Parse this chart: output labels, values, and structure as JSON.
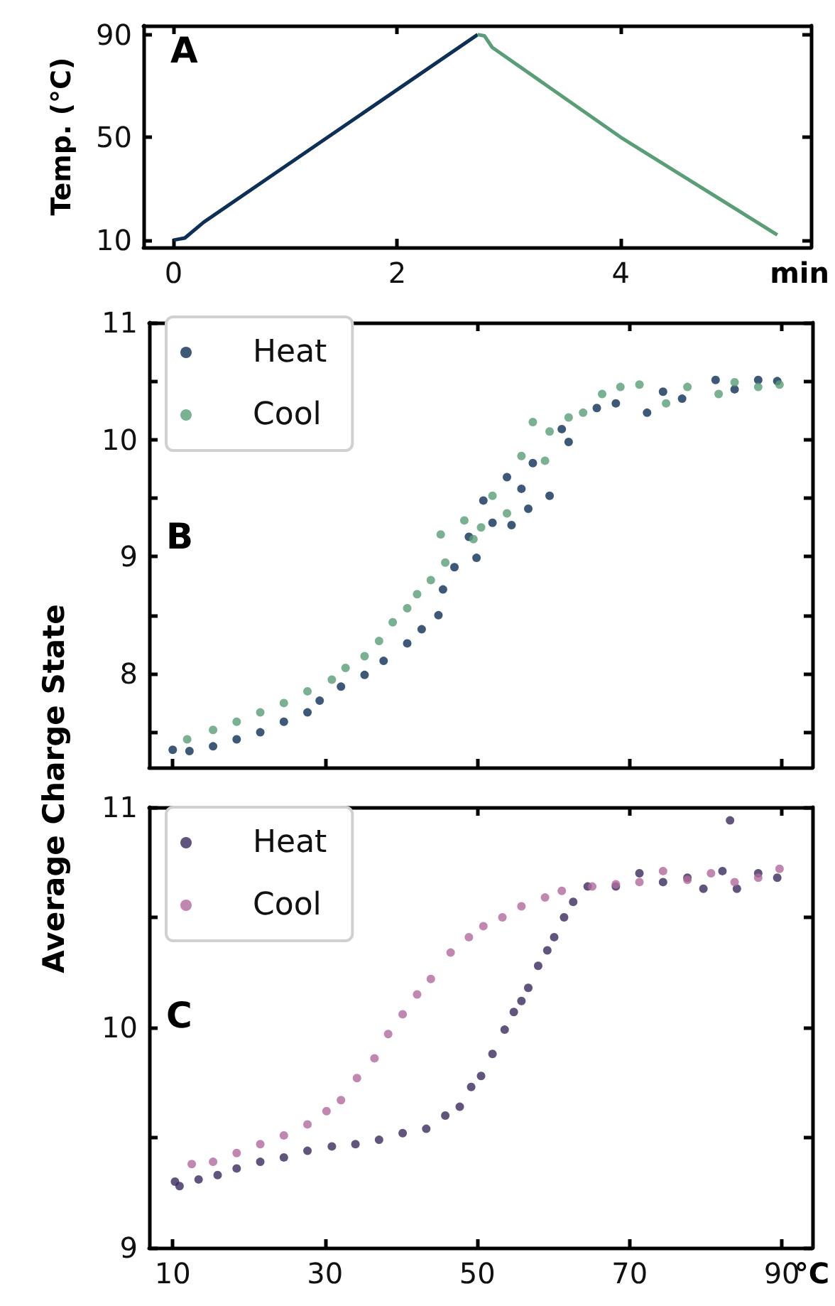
{
  "chart_data": [
    {
      "type": "line",
      "ylabel": "Temp. (°C)",
      "xlabel": "min",
      "annotations": [
        "A"
      ],
      "xlim": [
        -0.27,
        5.7
      ],
      "xticks": [
        0,
        2,
        4
      ],
      "ylim": [
        7.2,
        93.5
      ],
      "yticks": [
        10,
        50,
        90
      ],
      "series": [
        {
          "color": "#0e2f56",
          "x": [
            0,
            0.1,
            0.27,
            2.72
          ],
          "values": [
            10,
            10.8,
            17,
            90
          ]
        },
        {
          "color": "#5a9e78",
          "x": [
            2.72,
            2.78,
            2.85,
            4,
            5.4
          ],
          "values": [
            90,
            89.5,
            85,
            50,
            12
          ]
        }
      ]
    },
    {
      "type": "scatter",
      "ylabel": "Average Charge State",
      "annotations": [
        "B"
      ],
      "legend": "top left",
      "marker": "circle",
      "tick_labels": "y",
      "xlim": [
        6.9,
        94
      ],
      "xticks": [
        10,
        30,
        50,
        70,
        90
      ],
      "ylim": [
        7.2,
        11
      ],
      "yticks": [
        {
          "value": 7.5,
          "label": null
        },
        8,
        {
          "value": 8.5,
          "label": null
        },
        9,
        {
          "value": 9.5,
          "label": null
        },
        10,
        {
          "value": 10.5,
          "label": null
        },
        11
      ],
      "series": [
        {
          "name": "Heat",
          "color": "#0e2f56",
          "x": [
            10,
            12.2,
            15.3,
            18.4,
            21.5,
            24.6,
            27.7,
            29.3,
            32.1,
            35.2,
            37.7,
            40.8,
            42.7,
            44.9,
            45.5,
            47.0,
            48.9,
            49.9,
            50.8,
            52.0,
            53.9,
            54.5,
            55.8,
            56.7,
            57.3,
            59.5,
            61.1,
            62.0,
            65.7,
            68.2,
            72.3,
            74.4,
            76.9,
            81.3,
            83.8,
            86.9,
            89.4
          ],
          "values": [
            7.35,
            7.34,
            7.38,
            7.44,
            7.5,
            7.59,
            7.67,
            7.77,
            7.89,
            7.99,
            8.11,
            8.26,
            8.38,
            8.5,
            8.72,
            8.91,
            9.17,
            8.99,
            9.48,
            9.29,
            9.68,
            9.27,
            9.58,
            9.41,
            9.8,
            9.52,
            10.09,
            9.98,
            10.27,
            10.31,
            10.23,
            10.41,
            10.35,
            10.51,
            10.43,
            10.51,
            10.5
          ]
        },
        {
          "name": "Cool",
          "color": "#5a9e78",
          "x": [
            11.9,
            15.3,
            18.4,
            21.5,
            24.6,
            27.7,
            30.9,
            32.7,
            35.2,
            37.1,
            38.9,
            40.8,
            42.1,
            43.9,
            45.2,
            45.8,
            48.3,
            49.5,
            50.5,
            52.0,
            53.9,
            55.8,
            57.3,
            58.9,
            59.5,
            62.0,
            63.9,
            66.4,
            68.8,
            71.3,
            74.8,
            77.6,
            81.7,
            83.8,
            86.9,
            89.7
          ],
          "values": [
            7.44,
            7.52,
            7.59,
            7.67,
            7.75,
            7.85,
            7.95,
            8.05,
            8.15,
            8.28,
            8.44,
            8.56,
            8.68,
            8.8,
            9.19,
            8.95,
            9.31,
            9.15,
            9.25,
            9.52,
            9.37,
            9.86,
            10.15,
            9.82,
            10.07,
            10.19,
            10.23,
            10.39,
            10.45,
            10.47,
            10.31,
            10.45,
            10.39,
            10.49,
            10.45,
            10.47
          ]
        }
      ]
    },
    {
      "type": "scatter",
      "xlabel": "°C",
      "annotations": [
        "C"
      ],
      "legend": "top left",
      "marker": "circle",
      "xlim": [
        6.9,
        94
      ],
      "xticks": [
        10,
        30,
        50,
        70,
        90
      ],
      "ylim": [
        9,
        11
      ],
      "yticks": [
        9,
        {
          "value": 9.5,
          "label": null
        },
        10,
        {
          "value": 10.5,
          "label": null
        },
        11
      ],
      "series": [
        {
          "name": "Heat",
          "color": "#3b2a5c",
          "x": [
            10.3,
            10.9,
            13.4,
            15.9,
            18.4,
            21.5,
            24.6,
            27.7,
            30.9,
            34.0,
            37.1,
            40.2,
            43.3,
            45.8,
            47.7,
            49.2,
            50.5,
            52.0,
            53.6,
            54.8,
            55.8,
            56.7,
            58.0,
            59.2,
            60.1,
            61.4,
            62.6,
            64.5,
            68.2,
            71.3,
            74.4,
            77.6,
            79.7,
            82.2,
            83.2,
            84.1,
            86.9,
            89.4
          ],
          "values": [
            9.3,
            9.28,
            9.31,
            9.33,
            9.36,
            9.39,
            9.41,
            9.44,
            9.46,
            9.47,
            9.49,
            9.52,
            9.54,
            9.6,
            9.64,
            9.73,
            9.78,
            9.88,
            9.99,
            10.07,
            10.12,
            10.18,
            10.28,
            10.35,
            10.41,
            10.5,
            10.57,
            10.64,
            10.64,
            10.7,
            10.66,
            10.68,
            10.63,
            10.71,
            10.94,
            10.63,
            10.7,
            10.68
          ]
        },
        {
          "name": "Cool",
          "color": "#b06a9c",
          "x": [
            12.5,
            15.3,
            18.4,
            21.5,
            24.6,
            27.7,
            30.2,
            32.1,
            34.2,
            36.5,
            38.3,
            40.2,
            42.1,
            43.9,
            46.5,
            48.9,
            50.8,
            53.3,
            55.8,
            58.9,
            61.1,
            65.1,
            68.2,
            71.3,
            74.4,
            77.6,
            80.7,
            83.8,
            86.9,
            89.7
          ],
          "values": [
            9.38,
            9.39,
            9.43,
            9.47,
            9.51,
            9.56,
            9.62,
            9.67,
            9.77,
            9.86,
            9.97,
            10.06,
            10.15,
            10.22,
            10.34,
            10.41,
            10.46,
            10.5,
            10.55,
            10.59,
            10.62,
            10.64,
            10.65,
            10.66,
            10.71,
            10.67,
            10.7,
            10.66,
            10.68,
            10.72
          ]
        }
      ]
    }
  ]
}
